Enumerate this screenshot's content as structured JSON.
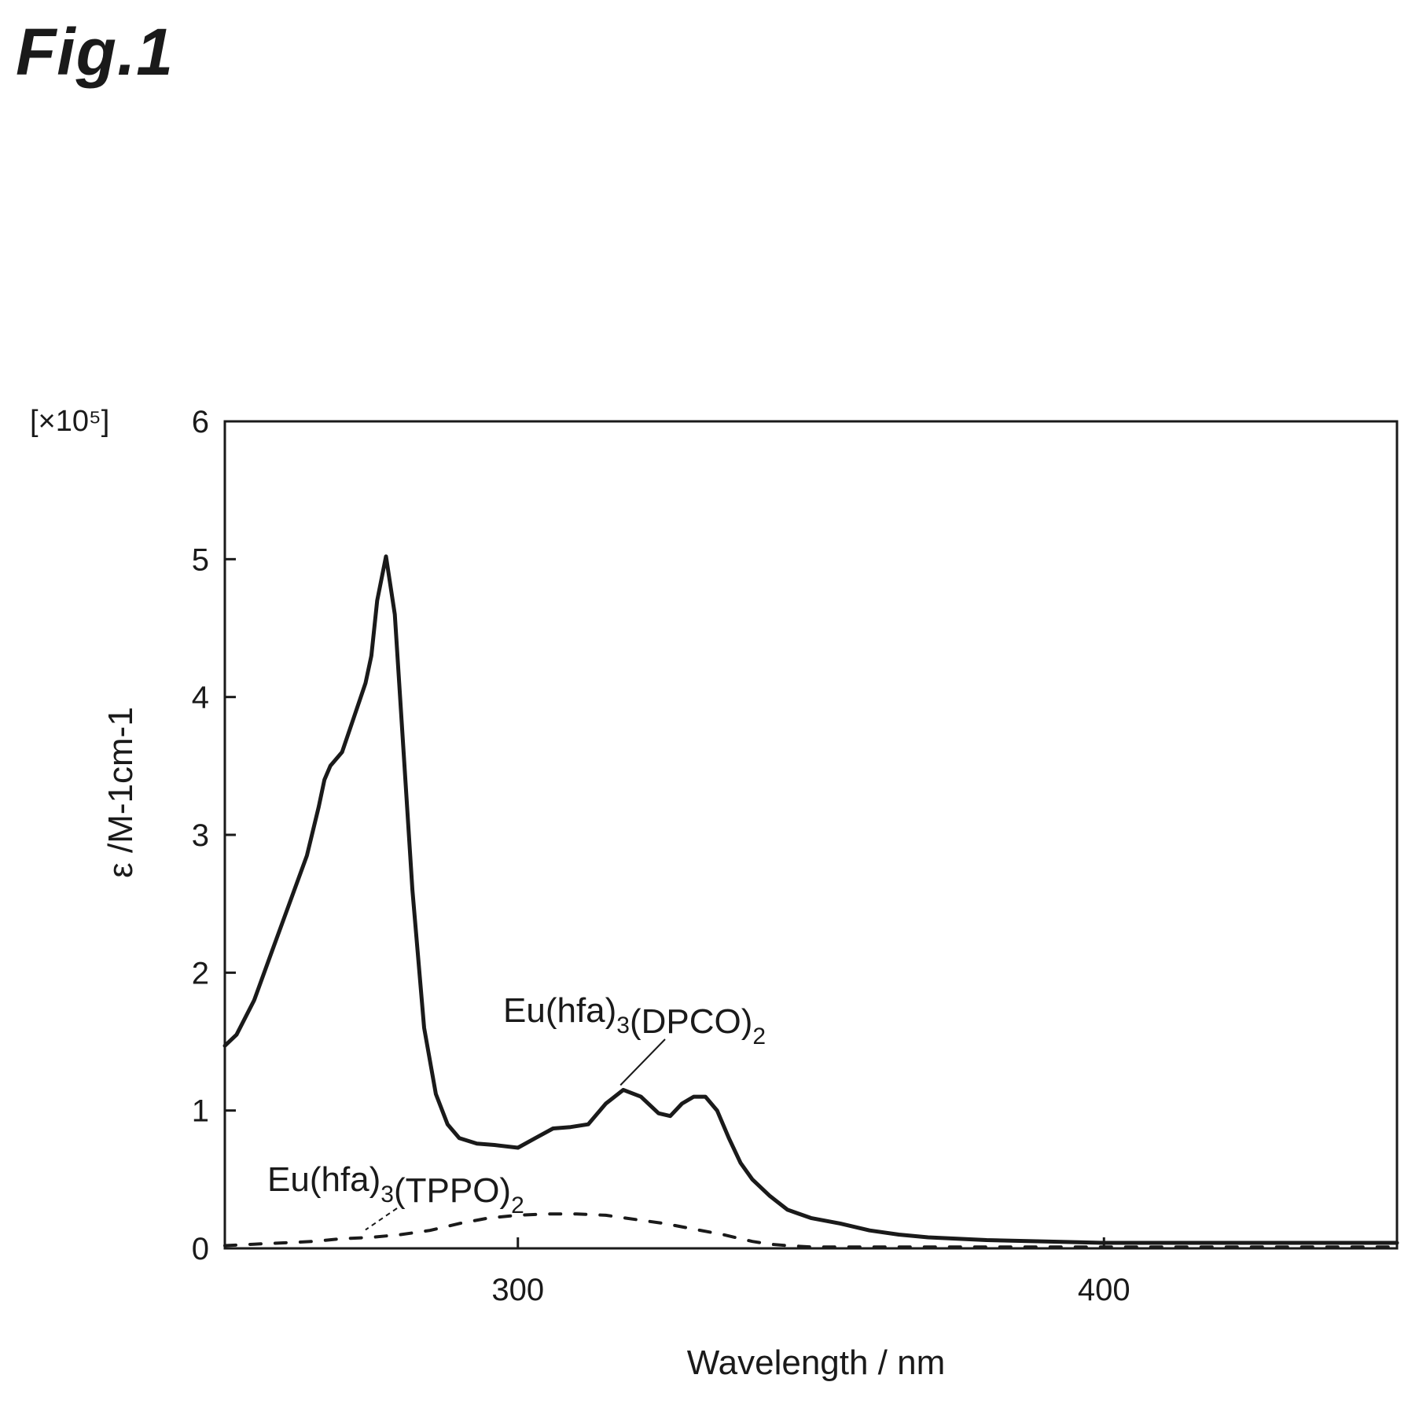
{
  "figure": {
    "title": "Fig.1"
  },
  "chart_data": {
    "type": "line",
    "xlabel": "Wavelength / nm",
    "ylabel": "ε /M-1cm-1",
    "y_multiplier": "[×10⁵]",
    "xlim": [
      250,
      450
    ],
    "ylim": [
      0,
      6
    ],
    "x_ticks": [
      300,
      400
    ],
    "y_ticks": [
      0,
      1,
      2,
      3,
      4,
      5,
      6
    ],
    "grid": false,
    "legend": "none",
    "series": [
      {
        "name": "Eu(hfa)3(DPCO)2",
        "style": "solid",
        "color": "#1a1a1a",
        "x": [
          250,
          252,
          255,
          258,
          261,
          264,
          266,
          267,
          268,
          270,
          272,
          274,
          275,
          276,
          277.5,
          279,
          280.5,
          282,
          284,
          286,
          288,
          290,
          293,
          296,
          300,
          303,
          306,
          309,
          312,
          315,
          318,
          321,
          324,
          326,
          328,
          330,
          332,
          334,
          336,
          338,
          340,
          343,
          346,
          350,
          355,
          360,
          365,
          370,
          380,
          390,
          400,
          420,
          450
        ],
        "y": [
          1.47,
          1.55,
          1.8,
          2.15,
          2.5,
          2.85,
          3.2,
          3.4,
          3.5,
          3.6,
          3.85,
          4.1,
          4.3,
          4.7,
          5.02,
          4.6,
          3.6,
          2.6,
          1.6,
          1.12,
          0.9,
          0.8,
          0.76,
          0.75,
          0.73,
          0.8,
          0.87,
          0.88,
          0.9,
          1.05,
          1.15,
          1.1,
          0.98,
          0.96,
          1.05,
          1.1,
          1.1,
          1.0,
          0.8,
          0.62,
          0.5,
          0.38,
          0.28,
          0.22,
          0.18,
          0.13,
          0.1,
          0.08,
          0.06,
          0.05,
          0.04,
          0.04,
          0.04
        ]
      },
      {
        "name": "Eu(hfa)3(TPPO)2",
        "style": "dotted",
        "color": "#1a1a1a",
        "x": [
          250,
          255,
          260,
          265,
          270,
          275,
          280,
          285,
          290,
          295,
          300,
          305,
          310,
          315,
          320,
          325,
          330,
          335,
          340,
          343,
          346,
          350,
          360,
          370,
          380,
          400,
          420,
          450
        ],
        "y": [
          0.02,
          0.03,
          0.04,
          0.05,
          0.07,
          0.08,
          0.1,
          0.13,
          0.18,
          0.22,
          0.24,
          0.25,
          0.25,
          0.24,
          0.21,
          0.18,
          0.14,
          0.1,
          0.05,
          0.03,
          0.02,
          0.01,
          0.01,
          0.01,
          0.01,
          0.01,
          0.01,
          0.01
        ]
      }
    ],
    "annotations": [
      {
        "series": 0,
        "base": "Eu(hfa)",
        "sub1": "3",
        "mid": "(DPCO)",
        "sub2": "2",
        "point": [
          317.5,
          1.15
        ]
      },
      {
        "series": 1,
        "base": "Eu(hfa)",
        "sub1": "3",
        "mid": "(TPPO)",
        "sub2": "2",
        "point": [
          274,
          0.1
        ]
      }
    ]
  }
}
